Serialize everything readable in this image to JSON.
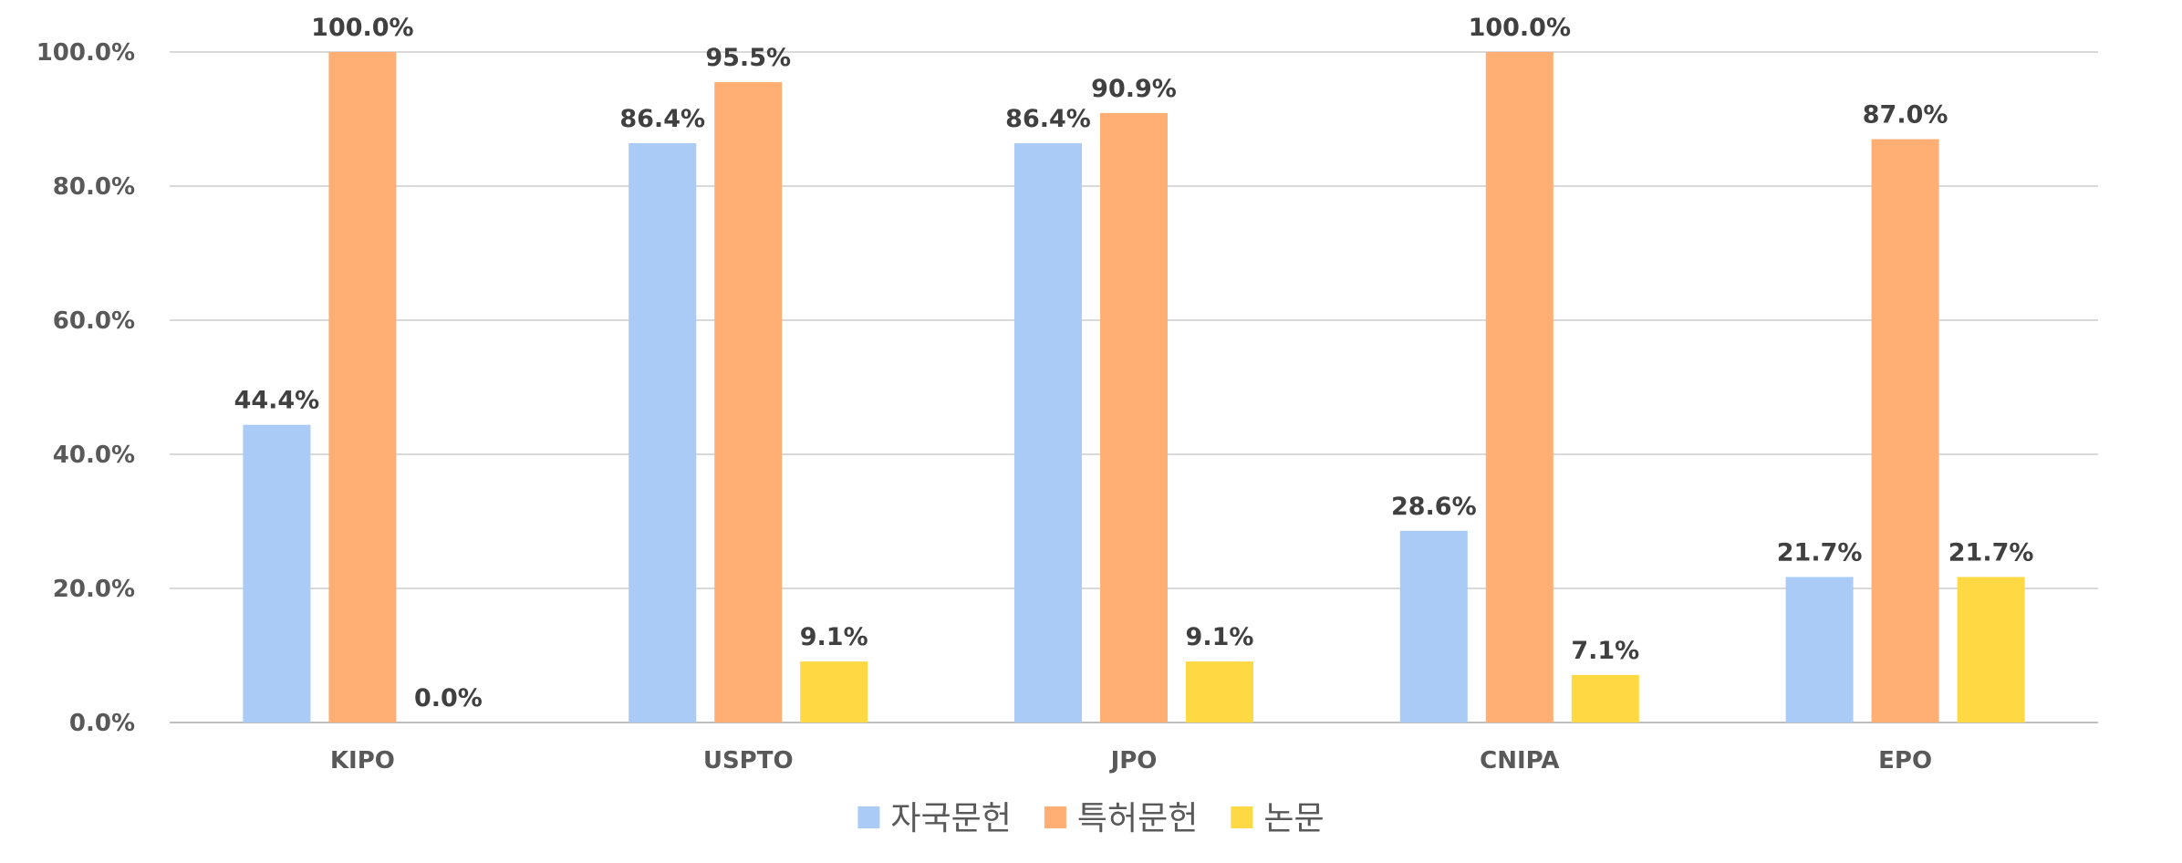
{
  "chart_data": {
    "type": "bar",
    "categories": [
      "KIPO",
      "USPTO",
      "JPO",
      "CNIPA",
      "EPO"
    ],
    "series": [
      {
        "name": "자국문헌",
        "values": [
          44.4,
          86.4,
          86.4,
          28.6,
          21.7
        ],
        "color": "#A9CBF5"
      },
      {
        "name": "특허문헌",
        "values": [
          100.0,
          95.5,
          90.9,
          100.0,
          87.0
        ],
        "color": "#FFAF73"
      },
      {
        "name": "논문",
        "values": [
          0.0,
          9.1,
          9.1,
          7.1,
          21.7
        ],
        "color": "#FFD944"
      }
    ],
    "title": "",
    "xlabel": "",
    "ylabel": "",
    "ylim": [
      0,
      100
    ],
    "yticks": [
      "0.0%",
      "20.0%",
      "40.0%",
      "60.0%",
      "80.0%",
      "100.0%"
    ],
    "value_format": "percent_1dp",
    "grid": true,
    "legend_position": "bottom"
  }
}
